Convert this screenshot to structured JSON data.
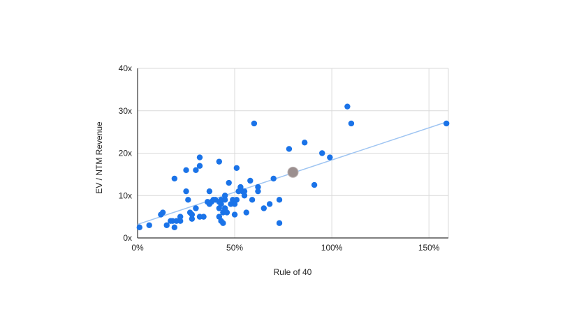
{
  "chart_data": {
    "type": "scatter",
    "title": "",
    "xlabel": "Rule of 40",
    "ylabel": "EV / NTM Revenue",
    "xlim": [
      0,
      160
    ],
    "ylim": [
      0,
      40
    ],
    "x_ticks": [
      {
        "value": 0,
        "label": "0%"
      },
      {
        "value": 50,
        "label": "50%"
      },
      {
        "value": 100,
        "label": "100%"
      },
      {
        "value": 150,
        "label": "150%"
      }
    ],
    "y_ticks": [
      {
        "value": 0,
        "label": "0x"
      },
      {
        "value": 10,
        "label": "10x"
      },
      {
        "value": 20,
        "label": "20x"
      },
      {
        "value": 30,
        "label": "30x"
      },
      {
        "value": 40,
        "label": "40x"
      }
    ],
    "grid": true,
    "legend": "none",
    "colors": {
      "points": "#1a73e8",
      "trendline": "#9fc5f2",
      "highlight": "#9b8f8f",
      "grid": "#d9d9d9",
      "axis": "#333333"
    },
    "series": [
      {
        "points": [
          [
            1,
            2.5
          ],
          [
            6,
            3
          ],
          [
            12,
            5.5
          ],
          [
            13,
            6
          ],
          [
            15,
            3
          ],
          [
            17,
            4
          ],
          [
            18,
            4
          ],
          [
            19,
            2.5
          ],
          [
            19,
            14
          ],
          [
            20,
            4
          ],
          [
            22,
            5
          ],
          [
            22,
            4
          ],
          [
            25,
            16
          ],
          [
            25,
            11
          ],
          [
            26,
            9
          ],
          [
            27,
            6
          ],
          [
            28,
            4.5
          ],
          [
            28,
            5.5
          ],
          [
            30,
            16
          ],
          [
            30,
            7
          ],
          [
            32,
            19
          ],
          [
            32,
            17
          ],
          [
            32,
            5
          ],
          [
            34,
            5
          ],
          [
            36,
            8.5
          ],
          [
            37,
            8
          ],
          [
            37,
            11
          ],
          [
            38,
            8.5
          ],
          [
            39,
            9
          ],
          [
            40,
            9
          ],
          [
            42,
            18
          ],
          [
            42,
            8.5
          ],
          [
            42,
            7
          ],
          [
            42,
            5
          ],
          [
            43,
            9
          ],
          [
            43,
            8
          ],
          [
            43,
            4
          ],
          [
            44,
            6
          ],
          [
            44,
            3.5
          ],
          [
            45,
            10
          ],
          [
            45,
            9
          ],
          [
            45,
            7
          ],
          [
            45,
            6.5
          ],
          [
            46,
            6
          ],
          [
            47,
            13
          ],
          [
            48,
            8
          ],
          [
            49,
            9
          ],
          [
            50,
            8
          ],
          [
            50,
            5.5
          ],
          [
            51,
            16.5
          ],
          [
            51,
            9
          ],
          [
            52,
            11
          ],
          [
            53,
            12
          ],
          [
            54,
            11
          ],
          [
            55,
            11
          ],
          [
            55,
            10
          ],
          [
            56,
            6
          ],
          [
            58,
            13.5
          ],
          [
            59,
            9
          ],
          [
            60,
            27
          ],
          [
            62,
            12
          ],
          [
            62,
            11
          ],
          [
            65,
            7
          ],
          [
            68,
            8
          ],
          [
            70,
            14
          ],
          [
            73,
            9
          ],
          [
            73,
            3.5
          ],
          [
            78,
            21
          ],
          [
            86,
            22.5
          ],
          [
            91,
            12.5
          ],
          [
            95,
            20
          ],
          [
            99,
            19
          ],
          [
            108,
            31
          ],
          [
            110,
            27
          ],
          [
            159,
            27
          ]
        ]
      }
    ],
    "highlight_point": [
      80,
      15.5
    ],
    "trendline": {
      "x": [
        0,
        160
      ],
      "y": [
        3.2,
        27.5
      ]
    }
  }
}
